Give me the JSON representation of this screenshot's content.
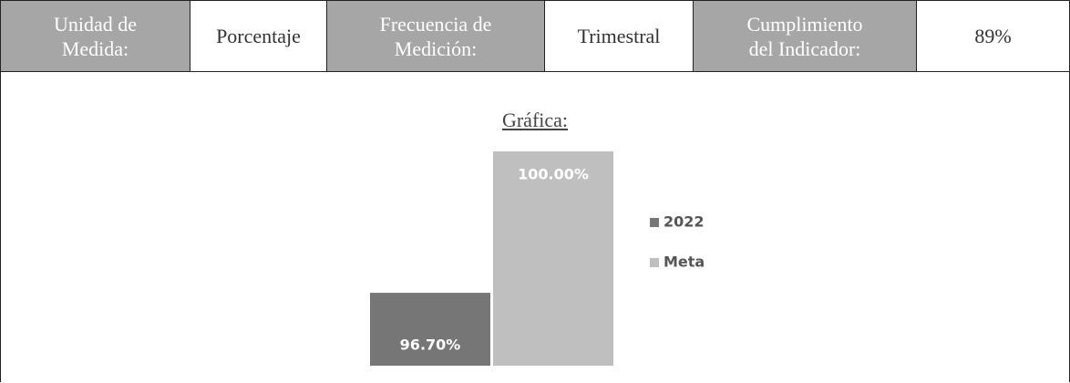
{
  "table": {
    "header": [
      {
        "label": "Unidad de\nMedida:",
        "kind": "key"
      },
      {
        "label": "Porcentaje",
        "kind": "value"
      },
      {
        "label": "Frecuencia de\nMedición:",
        "kind": "key"
      },
      {
        "label": "Trimestral",
        "kind": "value"
      },
      {
        "label": "Cumplimiento\ndel Indicador:",
        "kind": "key"
      },
      {
        "label": "89%",
        "kind": "value"
      }
    ]
  },
  "chart_data": {
    "type": "bar",
    "title": "Gráfica:",
    "categories": [
      null
    ],
    "series": [
      {
        "name": "2022",
        "color": "#767676",
        "values": [
          96.7
        ],
        "value_labels": [
          "96.70%"
        ]
      },
      {
        "name": "Meta",
        "color": "#bfbfbf",
        "values": [
          100
        ],
        "value_labels": [
          "100.00%"
        ]
      }
    ],
    "ylim": [
      95,
      100
    ],
    "legend": "right"
  }
}
